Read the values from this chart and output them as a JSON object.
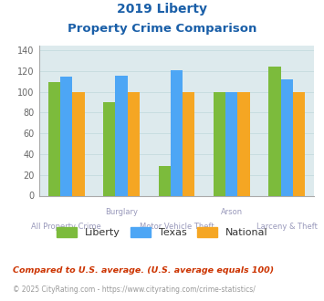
{
  "title_line1": "2019 Liberty",
  "title_line2": "Property Crime Comparison",
  "categories": [
    "All Property Crime",
    "Burglary",
    "Motor Vehicle Theft",
    "Arson",
    "Larceny & Theft"
  ],
  "liberty_values": [
    109,
    90,
    29,
    100,
    124
  ],
  "texas_values": [
    115,
    116,
    121,
    100,
    112
  ],
  "national_values": [
    100,
    100,
    100,
    100,
    100
  ],
  "liberty_color": "#7cbb3c",
  "texas_color": "#4da6f5",
  "national_color": "#f5a623",
  "bar_width": 0.22,
  "ylim": [
    0,
    145
  ],
  "yticks": [
    0,
    20,
    40,
    60,
    80,
    100,
    120,
    140
  ],
  "grid_color": "#c8dde0",
  "bg_color": "#ddeaed",
  "title_color": "#1a5fa8",
  "label_color": "#9999bb",
  "legend_labels": [
    "Liberty",
    "Texas",
    "National"
  ],
  "footnote1": "Compared to U.S. average. (U.S. average equals 100)",
  "footnote2": "© 2025 CityRating.com - https://www.cityrating.com/crime-statistics/",
  "footnote1_color": "#cc3300",
  "footnote2_color": "#999999"
}
